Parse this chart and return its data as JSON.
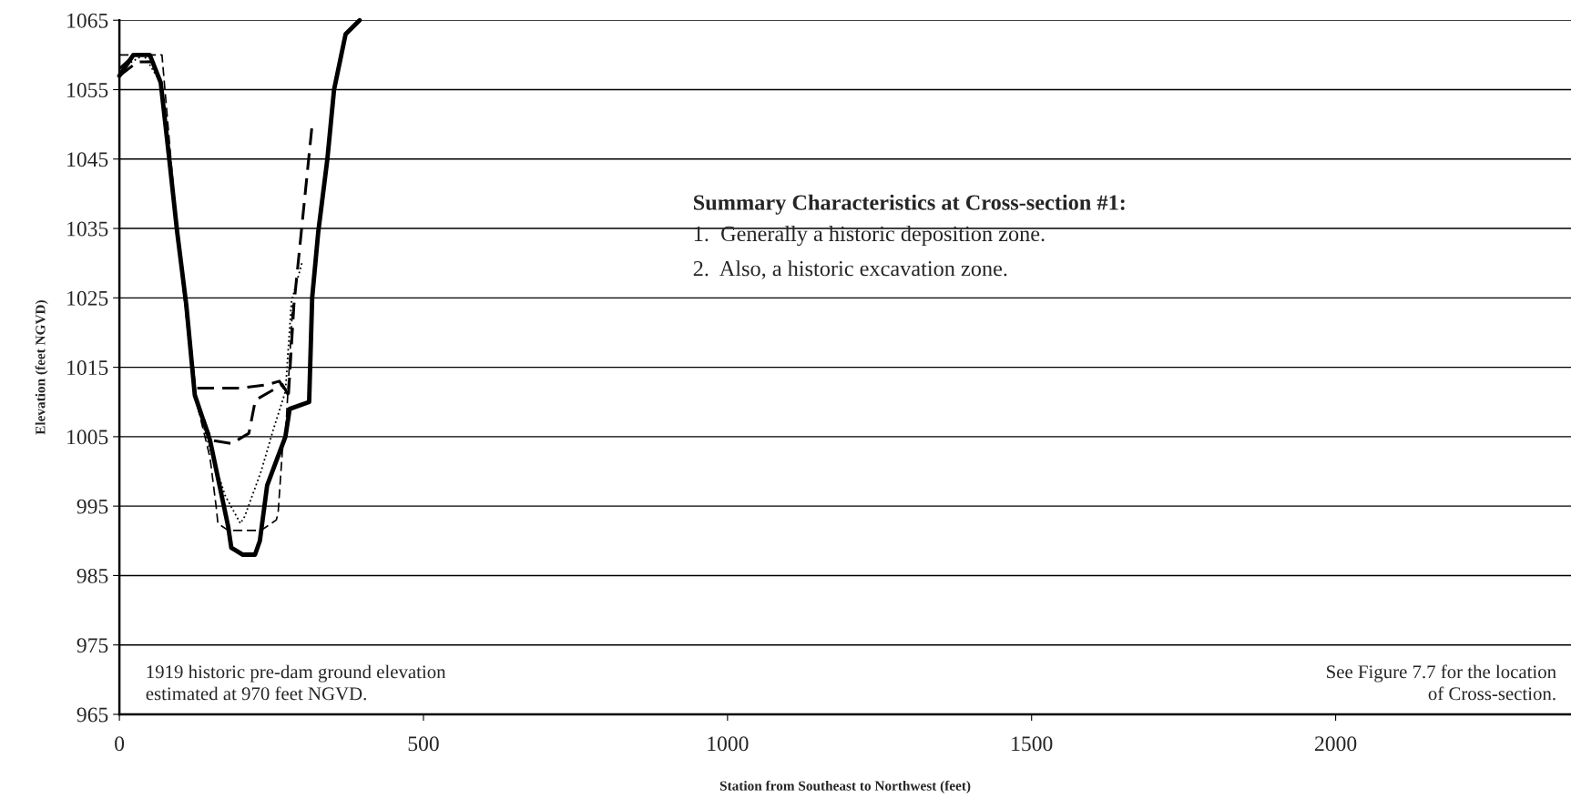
{
  "chart_data": {
    "type": "line",
    "xlabel": "Station from Southeast to Northwest (feet)",
    "ylabel": "Elevation (feet NGVD)",
    "xlim": [
      0,
      2387
    ],
    "xticks": [
      0,
      500,
      1000,
      1500,
      2000
    ],
    "ylim": [
      965,
      1065
    ],
    "yticks": [
      965,
      975,
      985,
      995,
      1005,
      1015,
      1025,
      1035,
      1045,
      1055,
      1065
    ],
    "grid": "y",
    "marker": "none",
    "series": [
      {
        "color": "#000000",
        "line_style": "solid",
        "x": [
          0,
          23,
          50,
          68,
          82,
          95,
          110,
          124,
          149,
          179,
          184,
          203,
          223,
          231,
          243,
          273,
          280,
          312,
          317,
          327,
          342,
          353,
          372,
          395
        ],
        "values": [
          1057,
          1060,
          1060,
          1056,
          1045,
          1034.5,
          1024,
          1011,
          1004.5,
          992,
          989,
          988,
          988,
          990,
          998,
          1005,
          1009,
          1010,
          1025,
          1034.5,
          1045,
          1055,
          1063,
          1065
        ]
      },
      {
        "color": "#000000",
        "line_style": "dashed",
        "x": [
          0,
          25,
          50,
          68,
          82,
          95,
          110,
          124,
          200,
          243,
          263,
          278,
          287,
          317
        ],
        "values": [
          1058,
          1060,
          1060,
          1056,
          1045,
          1034.5,
          1024,
          1012,
          1012,
          1012.5,
          1013,
          1011,
          1024,
          1050
        ]
      },
      {
        "color": "#000000",
        "line_style": "dashed",
        "x": [
          0,
          30,
          55,
          68,
          82,
          95,
          110,
          124,
          151,
          184,
          213,
          223,
          228,
          268,
          278
        ],
        "values": [
          1057,
          1059,
          1059,
          1056,
          1045,
          1034.5,
          1024,
          1011,
          1004.5,
          1004,
          1005.5,
          1010,
          1010.5,
          1012.5,
          1011
        ]
      },
      {
        "color": "#000000",
        "line_style": "dotted",
        "x": [
          0,
          40,
          68,
          95,
          124,
          148,
          174,
          199,
          206,
          233,
          253,
          273,
          283,
          300
        ],
        "values": [
          1058,
          1060,
          1056,
          1034.5,
          1011,
          1003.5,
          996.5,
          992.5,
          993.5,
          1000,
          1006,
          1011.5,
          1024.5,
          1030
        ]
      },
      {
        "color": "#000000",
        "line_style": "dashed",
        "x": [
          0,
          40,
          70,
          95,
          124,
          149,
          159,
          162,
          179,
          233,
          258,
          261,
          268,
          273,
          285
        ],
        "values": [
          1060,
          1060,
          1060,
          1034.5,
          1011,
          1002,
          995,
          992.5,
          991.5,
          991.5,
          993,
          994,
          1003,
          1005,
          1024
        ]
      }
    ],
    "annotations": [
      "Summary Characteristics at Cross-section #1:",
      "1.  Generally a historic deposition zone.",
      "2.  Also, a historic excavation zone.",
      "1919 historic pre-dam ground elevation\nestimated at 970 feet NGVD.",
      "See Figure 7.7 for the location\nof Cross-section."
    ]
  }
}
